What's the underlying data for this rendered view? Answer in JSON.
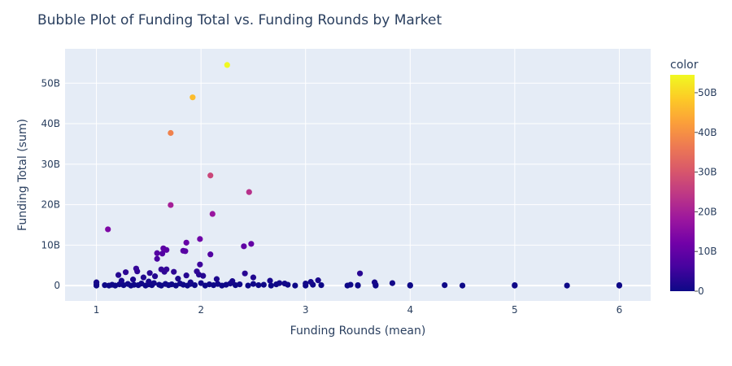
{
  "chart_data": {
    "type": "scatter",
    "title": "Bubble Plot of Funding Total vs. Funding Rounds by Market",
    "xlabel": "Funding Rounds (mean)",
    "ylabel": "Funding Total (sum)",
    "xlim": [
      0.7,
      6.3
    ],
    "ylim": [
      -3.8,
      58.5
    ],
    "x_ticks": [
      1,
      2,
      3,
      4,
      5,
      6
    ],
    "x_tick_labels": [
      "1",
      "2",
      "3",
      "4",
      "5",
      "6"
    ],
    "y_ticks": [
      0,
      10,
      20,
      30,
      40,
      50
    ],
    "y_tick_labels": [
      "0",
      "10B",
      "20B",
      "30B",
      "40B",
      "50B"
    ],
    "y_unit": "billions",
    "grid": true,
    "colorbar": {
      "title": "color",
      "range": [
        0,
        54.5
      ],
      "ticks": [
        0,
        10,
        20,
        30,
        40,
        50
      ],
      "tick_labels": [
        "0",
        "10B",
        "20B",
        "30B",
        "40B",
        "50B"
      ],
      "colorscale": [
        "#0d0887",
        "#46039f",
        "#7201a8",
        "#9c179e",
        "#bd3786",
        "#d8576b",
        "#ed7953",
        "#fb9f3a",
        "#fdca26",
        "#f0f921"
      ]
    },
    "points": [
      [
        2.25,
        54.5
      ],
      [
        1.92,
        46.5
      ],
      [
        1.71,
        37.7
      ],
      [
        2.09,
        27.2
      ],
      [
        2.46,
        23.1
      ],
      [
        1.71,
        19.9
      ],
      [
        2.11,
        17.7
      ],
      [
        1.11,
        13.9
      ],
      [
        1.99,
        11.5
      ],
      [
        1.86,
        10.6
      ],
      [
        2.48,
        10.3
      ],
      [
        2.41,
        9.7
      ],
      [
        1.64,
        9.2
      ],
      [
        1.67,
        8.8
      ],
      [
        1.83,
        8.6
      ],
      [
        1.58,
        8.0
      ],
      [
        1.85,
        8.5
      ],
      [
        1.63,
        7.9
      ],
      [
        2.09,
        7.7
      ],
      [
        1.58,
        6.6
      ],
      [
        1.99,
        5.2
      ],
      [
        1.38,
        4.2
      ],
      [
        1.62,
        4.0
      ],
      [
        1.67,
        4.0
      ],
      [
        1.39,
        3.5
      ],
      [
        1.65,
        3.4
      ],
      [
        1.28,
        3.3
      ],
      [
        1.74,
        3.4
      ],
      [
        1.96,
        3.5
      ],
      [
        1.51,
        3.1
      ],
      [
        3.52,
        3.0
      ],
      [
        2.42,
        3.0
      ],
      [
        1.98,
        2.7
      ],
      [
        1.21,
        2.6
      ],
      [
        1.86,
        2.5
      ],
      [
        2.02,
        2.4
      ],
      [
        1.56,
        2.3
      ],
      [
        1.45,
        2.0
      ],
      [
        2.5,
        2.0
      ],
      [
        1.78,
        1.7
      ],
      [
        2.15,
        1.6
      ],
      [
        3.12,
        1.3
      ],
      [
        2.66,
        1.2
      ],
      [
        1.35,
        1.5
      ],
      [
        1.24,
        1.2
      ],
      [
        2.3,
        1.1
      ],
      [
        1.5,
        1.0
      ],
      [
        3.05,
        0.9
      ],
      [
        3.66,
        0.8
      ],
      [
        3.83,
        0.6
      ],
      [
        1.9,
        0.8
      ],
      [
        2.8,
        0.5
      ],
      [
        1.0,
        0.8
      ],
      [
        1.0,
        0.3
      ],
      [
        1.0,
        0.0
      ],
      [
        1.08,
        0.1
      ],
      [
        1.12,
        0.0
      ],
      [
        1.15,
        0.2
      ],
      [
        1.18,
        0.0
      ],
      [
        1.22,
        0.3
      ],
      [
        1.26,
        0.1
      ],
      [
        1.3,
        0.4
      ],
      [
        1.33,
        0.0
      ],
      [
        1.36,
        0.2
      ],
      [
        1.4,
        0.1
      ],
      [
        1.43,
        0.5
      ],
      [
        1.47,
        0.0
      ],
      [
        1.5,
        0.3
      ],
      [
        1.53,
        0.1
      ],
      [
        1.55,
        0.6
      ],
      [
        1.6,
        0.2
      ],
      [
        1.62,
        0.0
      ],
      [
        1.66,
        0.4
      ],
      [
        1.69,
        0.1
      ],
      [
        1.72,
        0.3
      ],
      [
        1.76,
        0.0
      ],
      [
        1.8,
        0.5
      ],
      [
        1.83,
        0.2
      ],
      [
        1.87,
        0.0
      ],
      [
        1.9,
        0.4
      ],
      [
        1.94,
        0.1
      ],
      [
        2.0,
        0.6
      ],
      [
        2.04,
        0.0
      ],
      [
        2.08,
        0.3
      ],
      [
        2.12,
        0.1
      ],
      [
        2.16,
        0.4
      ],
      [
        2.2,
        0.0
      ],
      [
        2.24,
        0.2
      ],
      [
        2.28,
        0.5
      ],
      [
        2.33,
        0.1
      ],
      [
        2.37,
        0.3
      ],
      [
        2.45,
        0.0
      ],
      [
        2.5,
        0.4
      ],
      [
        2.55,
        0.1
      ],
      [
        2.6,
        0.2
      ],
      [
        2.67,
        0.0
      ],
      [
        2.72,
        0.3
      ],
      [
        2.75,
        0.6
      ],
      [
        2.83,
        0.2
      ],
      [
        2.9,
        0.0
      ],
      [
        3.0,
        0.5
      ],
      [
        3.0,
        0.0
      ],
      [
        3.07,
        0.2
      ],
      [
        3.15,
        0.1
      ],
      [
        3.4,
        0.0
      ],
      [
        3.43,
        0.2
      ],
      [
        3.5,
        0.1
      ],
      [
        3.5,
        0.0
      ],
      [
        3.67,
        0.2
      ],
      [
        3.67,
        0.0
      ],
      [
        4.0,
        0.1
      ],
      [
        4.0,
        0.0
      ],
      [
        4.33,
        0.1
      ],
      [
        4.5,
        0.0
      ],
      [
        5.0,
        0.1
      ],
      [
        5.0,
        0.0
      ],
      [
        5.5,
        0.0
      ],
      [
        6.0,
        0.1
      ],
      [
        6.0,
        0.0
      ]
    ]
  }
}
